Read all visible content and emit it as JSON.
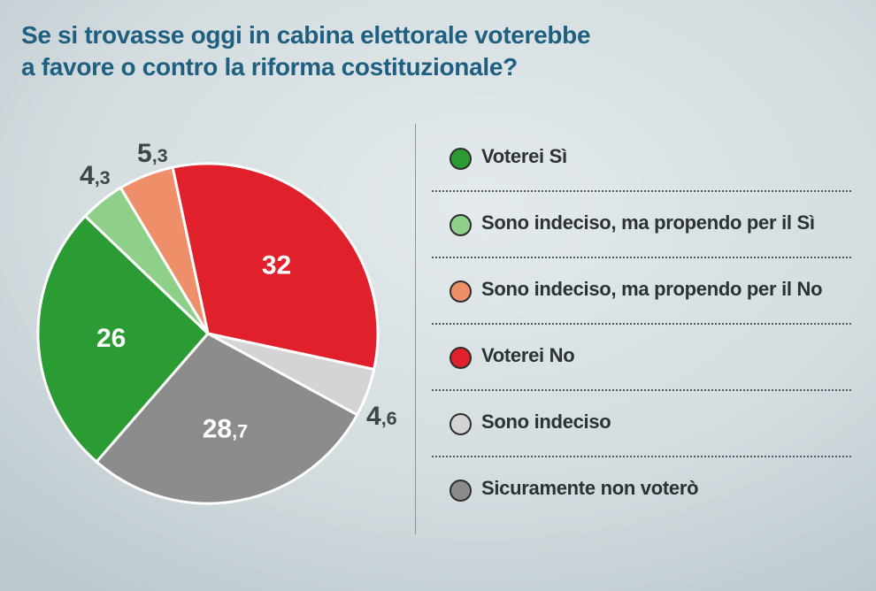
{
  "title_lines": [
    "Se si trovasse oggi in cabina elettorale voterebbe",
    "a favore o contro la riforma costituzionale?"
  ],
  "chart_data": {
    "type": "pie",
    "title": "Se si trovasse oggi in cabina elettorale voterebbe a favore o contro la riforma costituzionale?",
    "start_category": "Voterei No",
    "direction": "clockwise",
    "slices": [
      {
        "label": "Voterei No",
        "value": 32,
        "display": "32",
        "color": "#e0202a",
        "label_inside": true
      },
      {
        "label": "Sono indeciso",
        "value": 4.6,
        "display": "4,6",
        "color": "#d4d4d4",
        "label_inside": false
      },
      {
        "label": "Sicuramente non voterò",
        "value": 28.7,
        "display": "28,7",
        "color": "#8c8c8c",
        "label_inside": true
      },
      {
        "label": "Voterei Sì",
        "value": 26,
        "display": "26",
        "color": "#2a9c33",
        "label_inside": true
      },
      {
        "label": "Sono indeciso, ma propendo per il Sì",
        "value": 4.3,
        "display": "4,3",
        "color": "#8ecf8a",
        "label_inside": false
      },
      {
        "label": "Sono indeciso, ma propendo per il No",
        "value": 5.3,
        "display": "5,3",
        "color": "#ef8f6a",
        "label_inside": false
      }
    ],
    "legend": [
      {
        "label": "Voterei Sì",
        "color": "#2a9c33"
      },
      {
        "label": "Sono indeciso, ma propendo per il Sì",
        "color": "#8ecf8a"
      },
      {
        "label": "Sono indeciso, ma propendo per il No",
        "color": "#ef8f6a"
      },
      {
        "label": "Voterei No",
        "color": "#e0202a"
      },
      {
        "label": "Sono indeciso",
        "color": "#d4d4d4"
      },
      {
        "label": "Sicuramente non voterò",
        "color": "#8c8c8c"
      }
    ]
  }
}
